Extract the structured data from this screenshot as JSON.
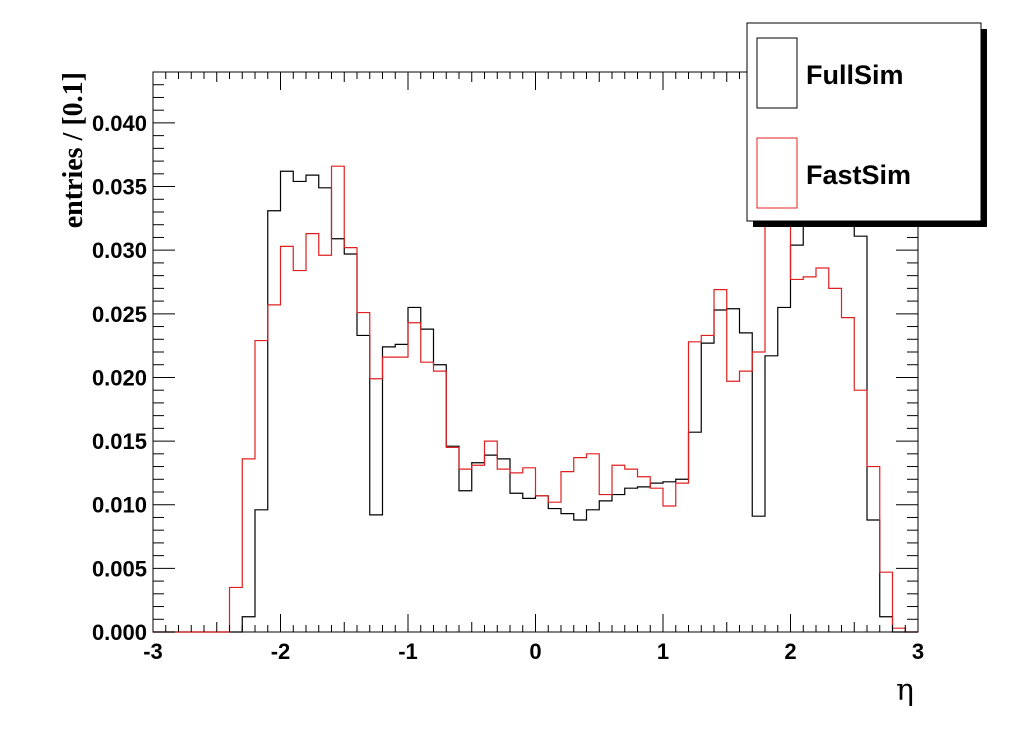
{
  "chart_data": {
    "type": "histogram",
    "xlabel": "η",
    "ylabel": "entries / [0.1]",
    "xlim": [
      -3,
      3
    ],
    "ylim": [
      0,
      0.044
    ],
    "bin_width": 0.1,
    "x_ticks": [
      "-3",
      "-2",
      "-1",
      "0",
      "1",
      "2",
      "3"
    ],
    "y_ticks": [
      "0.000",
      "0.005",
      "0.010",
      "0.015",
      "0.020",
      "0.025",
      "0.030",
      "0.035",
      "0.040"
    ],
    "legend_position": "top-right",
    "series": [
      {
        "name": "FullSim",
        "color": "#000000",
        "values": [
          0,
          0,
          0,
          0,
          0,
          0,
          0,
          0.0012,
          0.0096,
          0.0331,
          0.0362,
          0.0354,
          0.0359,
          0.0349,
          0.0309,
          0.0297,
          0.0233,
          0.0092,
          0.0224,
          0.0226,
          0.0255,
          0.0238,
          0.021,
          0.0146,
          0.0111,
          0.0133,
          0.0139,
          0.0136,
          0.0109,
          0.0105,
          0.0107,
          0.0097,
          0.0093,
          0.0088,
          0.0096,
          0.0103,
          0.0108,
          0.0113,
          0.0114,
          0.0117,
          0.0118,
          0.012,
          0.0157,
          0.0227,
          0.0253,
          0.0254,
          0.0235,
          0.0091,
          0.0217,
          0.0255,
          0.0304,
          0.0325,
          0.0342,
          0.0337,
          0.033,
          0.0311,
          0.0088,
          0.0012,
          0,
          0
        ]
      },
      {
        "name": "FastSim",
        "color": "#e02020",
        "values": [
          0,
          0,
          0,
          0,
          0,
          0,
          0.0035,
          0.0136,
          0.0229,
          0.0257,
          0.0303,
          0.0284,
          0.0313,
          0.0296,
          0.0366,
          0.0302,
          0.0251,
          0.0199,
          0.0216,
          0.0216,
          0.0243,
          0.0212,
          0.0205,
          0.0145,
          0.0128,
          0.0131,
          0.015,
          0.0128,
          0.0125,
          0.0129,
          0.0107,
          0.0102,
          0.0126,
          0.0137,
          0.014,
          0.0108,
          0.0131,
          0.0128,
          0.0122,
          0.0113,
          0.0099,
          0.0117,
          0.0228,
          0.0233,
          0.0269,
          0.0197,
          0.0205,
          0.022,
          0.0319,
          0.0328,
          0.0277,
          0.0279,
          0.0286,
          0.027,
          0.0247,
          0.019,
          0.013,
          0.0047,
          0.0003,
          0
        ]
      }
    ]
  }
}
